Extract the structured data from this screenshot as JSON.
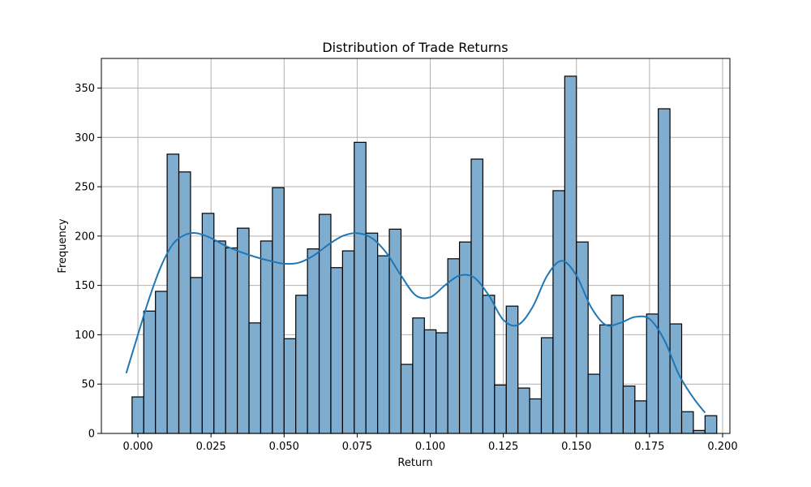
{
  "chart_data": {
    "type": "bar",
    "title": "Distribution of Trade Returns",
    "xlabel": "Return",
    "ylabel": "Frequency",
    "xlim": [
      -0.0125,
      0.2025
    ],
    "ylim": [
      0,
      380
    ],
    "grid": true,
    "bar_color": "#7fadd0",
    "bar_edge_color": "#000000",
    "kde_color": "#1f77b4",
    "xticks": [
      {
        "value": 0.0,
        "label": "0.000"
      },
      {
        "value": 0.025,
        "label": "0.025"
      },
      {
        "value": 0.05,
        "label": "0.050"
      },
      {
        "value": 0.075,
        "label": "0.075"
      },
      {
        "value": 0.1,
        "label": "0.100"
      },
      {
        "value": 0.125,
        "label": "0.125"
      },
      {
        "value": 0.15,
        "label": "0.150"
      },
      {
        "value": 0.175,
        "label": "0.175"
      },
      {
        "value": 0.2,
        "label": "0.200"
      }
    ],
    "yticks": [
      {
        "value": 0,
        "label": "0"
      },
      {
        "value": 50,
        "label": "50"
      },
      {
        "value": 100,
        "label": "100"
      },
      {
        "value": 150,
        "label": "150"
      },
      {
        "value": 200,
        "label": "200"
      },
      {
        "value": 250,
        "label": "250"
      },
      {
        "value": 300,
        "label": "300"
      },
      {
        "value": 350,
        "label": "350"
      }
    ],
    "bin_edges": [
      -0.002,
      0.002,
      0.006,
      0.01,
      0.014,
      0.018,
      0.022,
      0.026,
      0.03,
      0.034,
      0.038,
      0.042,
      0.046,
      0.05,
      0.054,
      0.058,
      0.062,
      0.066,
      0.07,
      0.074,
      0.078,
      0.082,
      0.086,
      0.09,
      0.094,
      0.098,
      0.102,
      0.106,
      0.11,
      0.114,
      0.118,
      0.122,
      0.126,
      0.13,
      0.134,
      0.138,
      0.142,
      0.146,
      0.15,
      0.154,
      0.158,
      0.162,
      0.166,
      0.17,
      0.174,
      0.178,
      0.182,
      0.186,
      0.19,
      0.194
    ],
    "counts": [
      37,
      124,
      144,
      283,
      265,
      158,
      223,
      195,
      188,
      208,
      112,
      195,
      249,
      96,
      140,
      187,
      222,
      168,
      185,
      295,
      203,
      180,
      207,
      70,
      117,
      105,
      102,
      177,
      194,
      278,
      140,
      49,
      129,
      46,
      35,
      97,
      246,
      362,
      194,
      60,
      110,
      140,
      48,
      33,
      121,
      329,
      111,
      22,
      3,
      18
    ],
    "kde": {
      "x": [
        -0.004,
        0.0,
        0.004,
        0.008,
        0.012,
        0.016,
        0.02,
        0.025,
        0.03,
        0.035,
        0.04,
        0.045,
        0.05,
        0.055,
        0.06,
        0.065,
        0.07,
        0.075,
        0.08,
        0.085,
        0.09,
        0.095,
        0.1,
        0.105,
        0.11,
        0.115,
        0.12,
        0.125,
        0.13,
        0.135,
        0.14,
        0.145,
        0.15,
        0.155,
        0.16,
        0.165,
        0.17,
        0.175,
        0.18,
        0.185,
        0.19,
        0.194
      ],
      "y": [
        61,
        100,
        138,
        170,
        192,
        201,
        203,
        198,
        190,
        184,
        179,
        175,
        172,
        173,
        180,
        191,
        200,
        203,
        198,
        183,
        160,
        140,
        138,
        150,
        160,
        158,
        140,
        115,
        110,
        128,
        160,
        175,
        160,
        128,
        110,
        112,
        118,
        116,
        95,
        60,
        36,
        21
      ]
    }
  }
}
